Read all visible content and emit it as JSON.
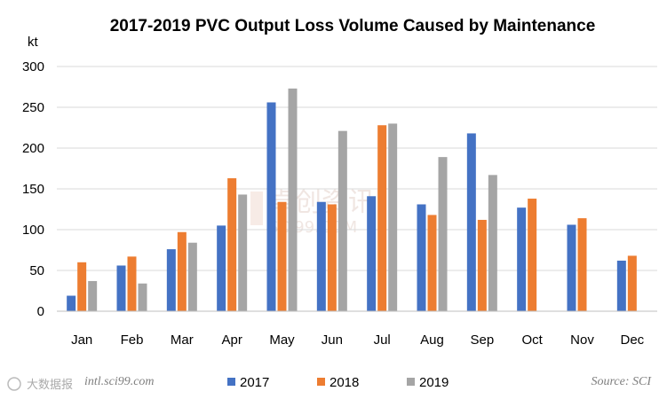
{
  "chart_data": {
    "type": "bar",
    "title": "2017-2019 PVC Output Loss Volume Caused by Maintenance",
    "ylabel": "kt",
    "xlabel": "",
    "ylim": [
      0,
      300
    ],
    "yticks": [
      0,
      50,
      100,
      150,
      200,
      250,
      300
    ],
    "grid": true,
    "legend": "bottom",
    "categories": [
      "Jan",
      "Feb",
      "Mar",
      "Apr",
      "May",
      "Jun",
      "Jul",
      "Aug",
      "Sep",
      "Oct",
      "Nov",
      "Dec"
    ],
    "series": [
      {
        "name": "2017",
        "color": "#4472c4",
        "values": [
          19,
          56,
          76,
          105,
          256,
          134,
          141,
          131,
          218,
          127,
          106,
          62
        ]
      },
      {
        "name": "2018",
        "color": "#ed7d31",
        "values": [
          60,
          67,
          97,
          163,
          134,
          131,
          228,
          118,
          112,
          138,
          114,
          68
        ]
      },
      {
        "name": "2019",
        "color": "#a5a5a5",
        "values": [
          37,
          34,
          84,
          143,
          273,
          221,
          230,
          189,
          167,
          null,
          null,
          null
        ]
      }
    ]
  },
  "footer": {
    "website": "intl.sci99.com",
    "source": "Source: SCI"
  },
  "watermark": {
    "text": "卓创资讯",
    "sub": "SCI99.COM",
    "corner": "大数据报"
  },
  "colors": {
    "grid": "#d9d9d9",
    "axis": "#bfbfbf"
  }
}
